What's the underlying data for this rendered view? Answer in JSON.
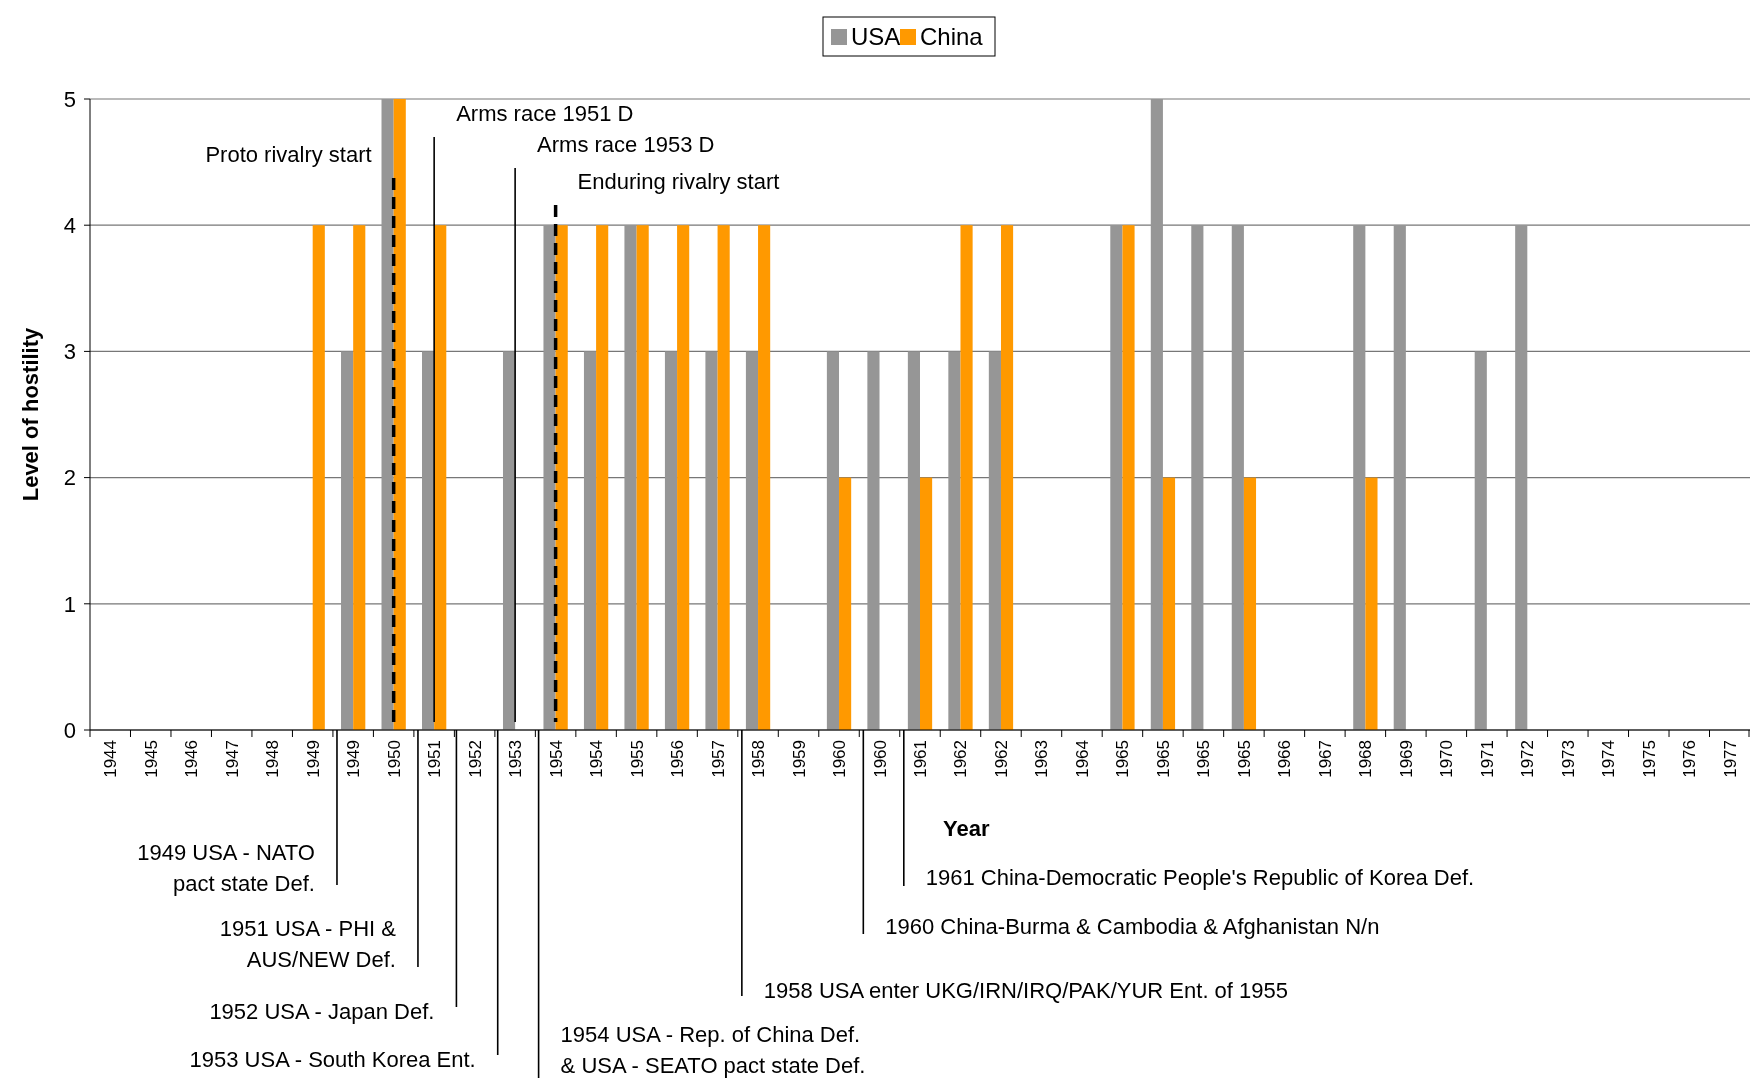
{
  "chart_data": {
    "type": "bar",
    "xlabel": "Year",
    "ylabel": "Level of hostility",
    "categories": [
      "1944",
      "1945",
      "1946",
      "1947",
      "1948",
      "1949",
      "1949",
      "1950",
      "1951",
      "1952",
      "1953",
      "1954",
      "1954",
      "1955",
      "1956",
      "1957",
      "1958",
      "1959",
      "1960",
      "1960",
      "1961",
      "1962",
      "1962",
      "1963",
      "1964",
      "1965",
      "1965",
      "1965",
      "1965",
      "1966",
      "1967",
      "1968",
      "1969",
      "1970",
      "1971",
      "1972",
      "1973",
      "1974",
      "1975",
      "1976",
      "1977"
    ],
    "series": [
      {
        "name": "USA",
        "color": "#969696",
        "values": [
          0,
          0,
          0,
          0,
          0,
          0,
          3,
          5,
          3,
          0,
          3,
          4,
          3,
          4,
          3,
          3,
          3,
          0,
          3,
          3,
          3,
          3,
          3,
          0,
          0,
          4,
          5,
          4,
          4,
          0,
          0,
          4,
          4,
          0,
          3,
          4,
          0,
          0,
          0,
          0,
          0
        ]
      },
      {
        "name": "China",
        "color": "#ff9900",
        "values": [
          0,
          0,
          0,
          0,
          0,
          4,
          4,
          5,
          4,
          0,
          0,
          4,
          4,
          4,
          4,
          4,
          4,
          0,
          2,
          0,
          2,
          4,
          4,
          0,
          0,
          4,
          2,
          0,
          2,
          0,
          0,
          2,
          0,
          0,
          0,
          0,
          0,
          0,
          0,
          0,
          0
        ]
      }
    ],
    "ylim": [
      0,
      5
    ],
    "yticks": [
      0,
      1,
      2,
      3,
      4,
      5
    ],
    "grid": "y",
    "legend": "top",
    "ref_lines": [
      {
        "axis": "x",
        "value": "1950",
        "label": "Proto rivalry start",
        "line_style": "dashed",
        "color": "#000000"
      },
      {
        "axis": "x",
        "value": "1951",
        "label": "Arms race 1951 D",
        "line_style": "solid",
        "color": "#000000"
      },
      {
        "axis": "x",
        "value": "1953",
        "label": "Arms race 1953 D",
        "line_style": "solid",
        "color": "#000000"
      },
      {
        "axis": "x",
        "value": "1954",
        "label": "Enduring rivalry start",
        "line_style": "dashed",
        "color": "#000000"
      }
    ],
    "annotations": [
      "1949 USA - NATO\npact state Def.",
      "1951 USA - PHI &\nAUS/NEW Def.",
      "1952 USA - Japan Def.",
      "1953 USA - South Korea Ent.",
      "1954 USA - Rep. of China Def.\n& USA - SEATO pact state Def.",
      "1958 USA enter UKG/IRN/IRQ/PAK/YUR Ent. of 1955",
      "1960 China-Burma & Cambodia & Afghanistan N/n",
      "1961 China-Democratic People's Republic of Korea Def."
    ]
  }
}
